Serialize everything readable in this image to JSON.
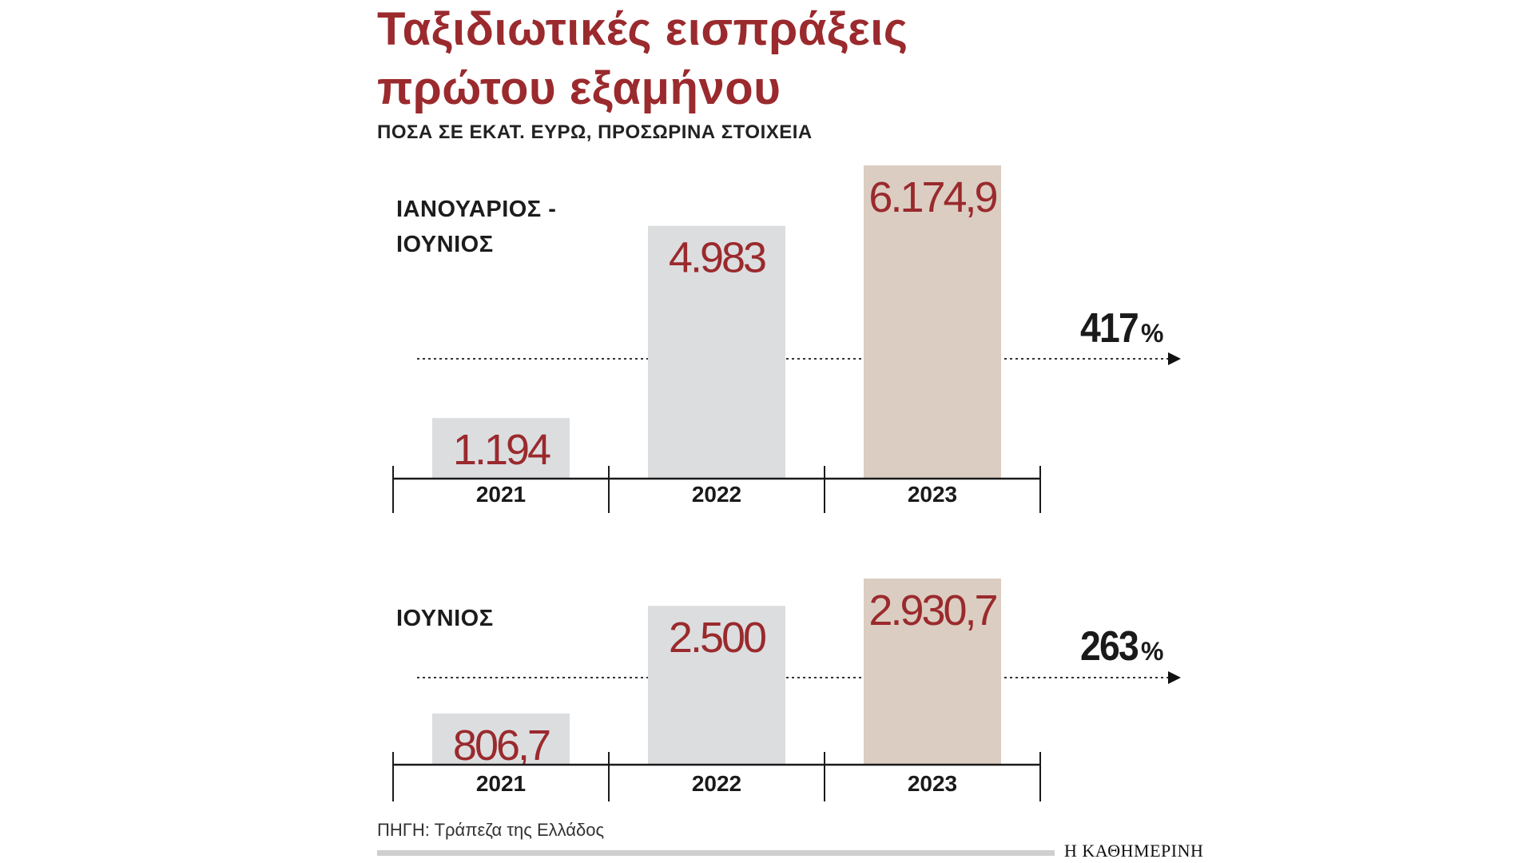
{
  "title": "Ταξιδιωτικές εισπράξεις\nπρώτου εξαμήνου",
  "subtitle": "ΠΟΣΑ ΣΕ ΕΚΑΤ. ΕΥΡΩ, ΠΡΟΣΩΡΙΝΑ ΣΤΟΙΧΕΙΑ",
  "source": "ΠΗΓΗ: Τράπεζα της Ελλάδος",
  "brand": "Η ΚΑΘΗΜΕΡΙΝΗ",
  "colors": {
    "title": "#9a2a2d",
    "value_text": "#9a2a2d",
    "bar_default": "#dcdddf",
    "bar_highlight": "#dbcdc1",
    "axis": "#1a1a1a"
  },
  "chart_data": [
    {
      "type": "bar",
      "label": "ΙΑΝΟΥΑΡΙΟΣ -\nΙΟΥΝΙΟΣ",
      "categories": [
        "2021",
        "2022",
        "2023"
      ],
      "values": [
        1194,
        4983,
        6174.9
      ],
      "value_labels": [
        "1.194",
        "4.983",
        "6.174,9"
      ],
      "highlight_index": 2,
      "change": {
        "value": 417,
        "unit": "%"
      },
      "ylim": [
        0,
        6174.9
      ]
    },
    {
      "type": "bar",
      "label": "ΙΟΥΝΙΟΣ",
      "categories": [
        "2021",
        "2022",
        "2023"
      ],
      "values": [
        806.7,
        2500,
        2930.7
      ],
      "value_labels": [
        "806,7",
        "2.500",
        "2.930,7"
      ],
      "highlight_index": 2,
      "change": {
        "value": 263,
        "unit": "%"
      },
      "ylim": [
        0,
        2930.7
      ]
    }
  ]
}
